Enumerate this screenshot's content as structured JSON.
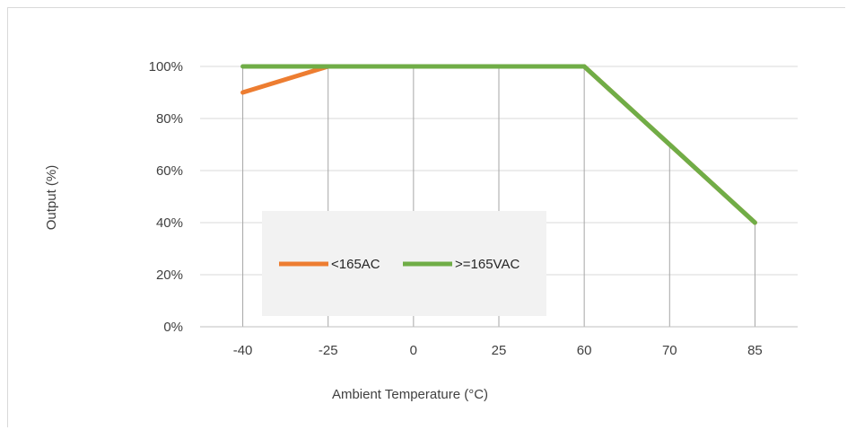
{
  "chart_data": {
    "type": "line",
    "title": "",
    "xlabel": "Ambient Temperature (°C)",
    "ylabel": "Output (%)",
    "categories": [
      "-40",
      "-25",
      "0",
      "25",
      "60",
      "70",
      "85"
    ],
    "y_ticks": [
      "0%",
      "20%",
      "40%",
      "60%",
      "80%",
      "100%"
    ],
    "ylim": [
      0,
      100
    ],
    "y_unit": "%",
    "grid": "horizontal gridlines; vertical drop lines from each data point to x-axis",
    "legend_position": "inside plot, lower-left",
    "series": [
      {
        "name": "<165AC",
        "color": "#ED7D31",
        "values": [
          90,
          100,
          100,
          100,
          100,
          70,
          40
        ]
      },
      {
        "name": ">=165VAC",
        "color": "#70AD47",
        "values": [
          100,
          100,
          100,
          100,
          100,
          70,
          40
        ]
      }
    ]
  }
}
